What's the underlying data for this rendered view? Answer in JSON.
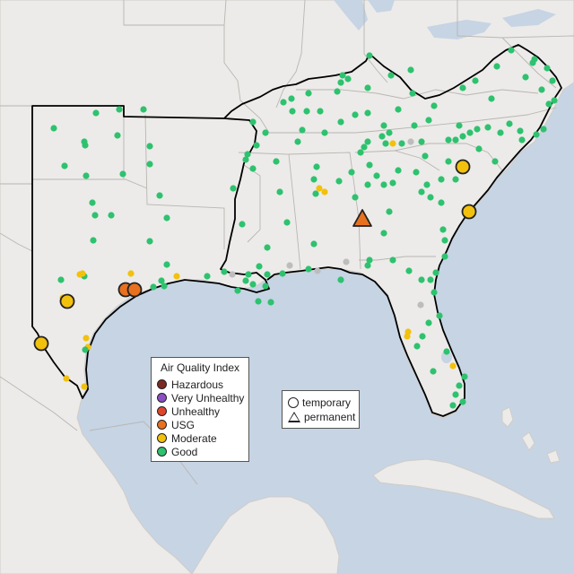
{
  "colors": {
    "water": "#c6d4e4",
    "land": "#ecebe9",
    "land_edge": "#d9d7d3",
    "boundary": "#b9b6b2",
    "region": "#000000",
    "hazardous": "#7e2a24",
    "very_unhealthy": "#8b4fc4",
    "unhealthy": "#e0452b",
    "usg": "#e8711f",
    "moderate": "#f2c10e",
    "good": "#2ec26f",
    "no_data": "#bdbdbd"
  },
  "legend_aqi": {
    "title": "Air Quality Index",
    "items": [
      {
        "label": "Hazardous",
        "color": "#7e2a24"
      },
      {
        "label": "Very Unhealthy",
        "color": "#8b4fc4"
      },
      {
        "label": "Unhealthy",
        "color": "#e0452b"
      },
      {
        "label": "USG",
        "color": "#e8711f"
      },
      {
        "label": "Moderate",
        "color": "#f2c10e"
      },
      {
        "label": "Good",
        "color": "#2ec26f"
      }
    ]
  },
  "legend_type": {
    "items": [
      {
        "label": "temporary",
        "shape": "circle"
      },
      {
        "label": "permanent",
        "shape": "triangle"
      }
    ]
  }
}
